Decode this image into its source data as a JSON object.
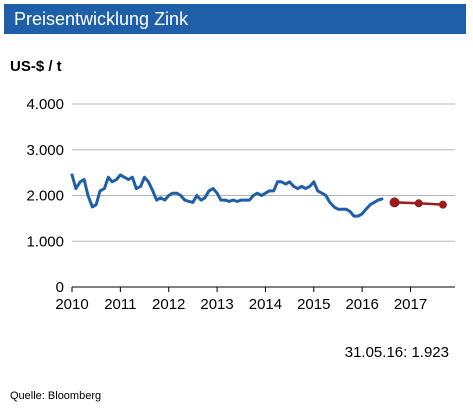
{
  "chart_data": {
    "type": "line",
    "title": "Preisentwicklung Zink",
    "ylabel": "US-$ / t",
    "ylim": [
      0,
      4000
    ],
    "yticks": [
      "0",
      "1.000",
      "2.000",
      "3.000",
      "4.000"
    ],
    "ytick_values": [
      0,
      1000,
      2000,
      3000,
      4000
    ],
    "xlim": [
      2010,
      2017.92
    ],
    "xticks": [
      "2010",
      "2011",
      "2012",
      "2013",
      "2014",
      "2015",
      "2016",
      "2017"
    ],
    "xtick_values": [
      2010,
      2011,
      2012,
      2013,
      2014,
      2015,
      2016,
      2017
    ],
    "grid": "horizontal",
    "colors": {
      "series": "#1f5fa7",
      "forecast": "#9b1c1c",
      "title_bar": "#1f5fa7"
    },
    "series": [
      {
        "x": [
          2010.0,
          2010.08,
          2010.17,
          2010.25,
          2010.33,
          2010.42,
          2010.5,
          2010.58,
          2010.67,
          2010.75,
          2010.83,
          2010.92,
          2011.0,
          2011.08,
          2011.17,
          2011.25,
          2011.33,
          2011.42,
          2011.5,
          2011.58,
          2011.67,
          2011.75,
          2011.83,
          2011.92,
          2012.0,
          2012.08,
          2012.17,
          2012.25,
          2012.33,
          2012.42,
          2012.5,
          2012.58,
          2012.67,
          2012.75,
          2012.83,
          2012.92,
          2013.0,
          2013.08,
          2013.17,
          2013.25,
          2013.33,
          2013.42,
          2013.5,
          2013.58,
          2013.67,
          2013.75,
          2013.83,
          2013.92,
          2014.0,
          2014.08,
          2014.17,
          2014.25,
          2014.33,
          2014.42,
          2014.5,
          2014.58,
          2014.67,
          2014.75,
          2014.83,
          2014.92,
          2015.0,
          2015.08,
          2015.17,
          2015.25,
          2015.33,
          2015.42,
          2015.5,
          2015.58,
          2015.67,
          2015.75,
          2015.83,
          2015.92,
          2016.0,
          2016.08,
          2016.17,
          2016.25,
          2016.33,
          2016.41
        ],
        "y": [
          2450,
          2150,
          2300,
          2350,
          2000,
          1750,
          1800,
          2100,
          2150,
          2400,
          2300,
          2350,
          2450,
          2400,
          2350,
          2400,
          2150,
          2200,
          2400,
          2300,
          2100,
          1900,
          1950,
          1900,
          2000,
          2050,
          2050,
          2000,
          1900,
          1870,
          1850,
          2000,
          1900,
          1950,
          2100,
          2150,
          2050,
          1900,
          1900,
          1870,
          1900,
          1870,
          1900,
          1900,
          1900,
          2000,
          2050,
          2000,
          2050,
          2100,
          2100,
          2300,
          2300,
          2250,
          2300,
          2200,
          2150,
          2200,
          2150,
          2200,
          2300,
          2100,
          2050,
          2000,
          1850,
          1750,
          1700,
          1700,
          1700,
          1650,
          1550,
          1550,
          1600,
          1700,
          1800,
          1850,
          1900,
          1923
        ]
      },
      {
        "x": [
          2016.67,
          2017.17,
          2017.67
        ],
        "y": [
          1850,
          1830,
          1800
        ]
      }
    ],
    "annotation": "31.05.16: 1.923",
    "source": "Quelle:  Bloomberg"
  }
}
